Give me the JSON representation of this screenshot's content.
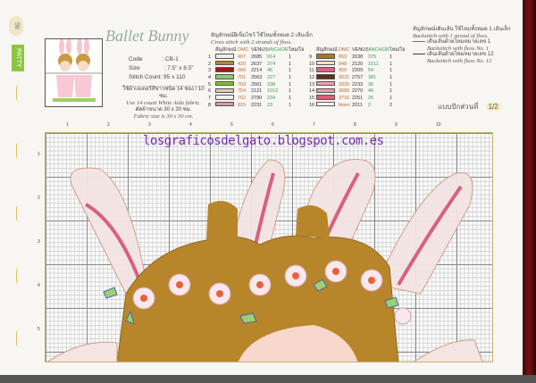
{
  "page": {
    "number": "58",
    "brand": "PATTY"
  },
  "pattern": {
    "title": "Ballet Bunny",
    "code_label": "Code",
    "code": ": CB-1",
    "size_label": "Size",
    "size": ": 7.5\" x 8.5\"",
    "stitch_label": "Stitch Count:",
    "stitch": "95 x 110",
    "fabric_thai": "ใช้ผ้าเอเดอร์สีขาวชนิด 14 ช่อง / 10 ซม.",
    "fabric_en": "Use 14 count White Aida fabric.",
    "size_thai": "ตัดผ้าขนาด 30 x 30 ซม.",
    "size_en": "Fabric size is 30 x 30 cm."
  },
  "cross": {
    "thai": "สัญลักษณ์ฝีเข็มไขว้ ใช้ไหมทั้งหมด 2 เส้นเล็ก",
    "en": "Cross stitch with 2 strands of floss.",
    "headers": [
      "สัญลักษณ์",
      "DMC",
      "VENUS",
      "ANCHOR",
      "ไหม/ไจ"
    ],
    "rows": [
      {
        "n": "1",
        "color": "#f4ece8",
        "dmc": "407",
        "venus": "2685",
        "anchor": "914",
        "skeins": "1"
      },
      {
        "n": "2",
        "color": "#b8862a",
        "dmc": "420",
        "venus": "2637",
        "anchor": "374",
        "skeins": "1"
      },
      {
        "n": "3",
        "color": "#a01818",
        "dmc": "666",
        "venus": "2214",
        "anchor": "46",
        "skeins": "1"
      },
      {
        "n": "4",
        "color": "#8fc478",
        "dmc": "701",
        "venus": "2563",
        "anchor": "227",
        "skeins": "1"
      },
      {
        "n": "5",
        "color": "#7cc030",
        "dmc": "703",
        "venus": "2561",
        "anchor": "238",
        "skeins": "1"
      },
      {
        "n": "6",
        "color": "#e8c8b8",
        "dmc": "754",
        "venus": "2121",
        "anchor": "1012",
        "skeins": "1"
      },
      {
        "n": "7",
        "color": "#f0f0f0",
        "dmc": "762",
        "venus": "2790",
        "anchor": "234",
        "skeins": "1"
      },
      {
        "n": "8",
        "color": "#d89aa0",
        "dmc": "815",
        "venus": "2231",
        "anchor": "23",
        "skeins": "1"
      },
      {
        "n": "9",
        "color": "#a87a20",
        "dmc": "869",
        "venus": "2638",
        "anchor": "375",
        "skeins": "1"
      },
      {
        "n": "10",
        "color": "#f8e0d0",
        "dmc": "948",
        "venus": "2120",
        "anchor": "1011",
        "skeins": "1"
      },
      {
        "n": "11",
        "color": "#e06080",
        "dmc": "956",
        "venus": "2209",
        "anchor": "54",
        "skeins": "1"
      },
      {
        "n": "12",
        "color": "#5a3020",
        "dmc": "3031",
        "venus": "2757",
        "anchor": "381",
        "skeins": "1"
      },
      {
        "n": "13",
        "color": "#e8a0b0",
        "dmc": "3326",
        "venus": "2233",
        "anchor": "36",
        "skeins": "1"
      },
      {
        "n": "14",
        "color": "#f09aa8",
        "dmc": "3689",
        "venus": "2270",
        "anchor": "49",
        "skeins": "1"
      },
      {
        "n": "15",
        "color": "#d86070",
        "dmc": "3716",
        "venus": "2251",
        "anchor": "25",
        "skeins": "1"
      },
      {
        "n": "16",
        "color": "#ffffff",
        "dmc": "blanc",
        "venus": "2011",
        "anchor": "2",
        "skeins": "2"
      }
    ]
  },
  "backstitch": {
    "thai": "สัญลักษณ์เดินเส้น ใช้ไหมทั้งหมด 1 เส้นเล็ก",
    "en": "Backstitch with 1 strand of floss.",
    "items": [
      {
        "thai": "เดินเส้นด้วยไหมหมายเลข 1",
        "en": "Backstitch with floss No. 1",
        "color": "#8a6a50"
      },
      {
        "thai": "เดินเส้นด้วยไหมหมายเลข 12",
        "en": "Backstitch with floss No. 12",
        "color": "#5a3020"
      }
    ]
  },
  "part": {
    "label": "แบบปักส่วนที่",
    "value": "1/2"
  },
  "chart": {
    "columns": [
      "1",
      "2",
      "3",
      "4",
      "5",
      "6",
      "7",
      "8",
      "9",
      "10"
    ],
    "rows": [
      "1",
      "2",
      "3",
      "4",
      "5"
    ],
    "watermark": "losgraficosdelgato.blogspot.com.es"
  }
}
